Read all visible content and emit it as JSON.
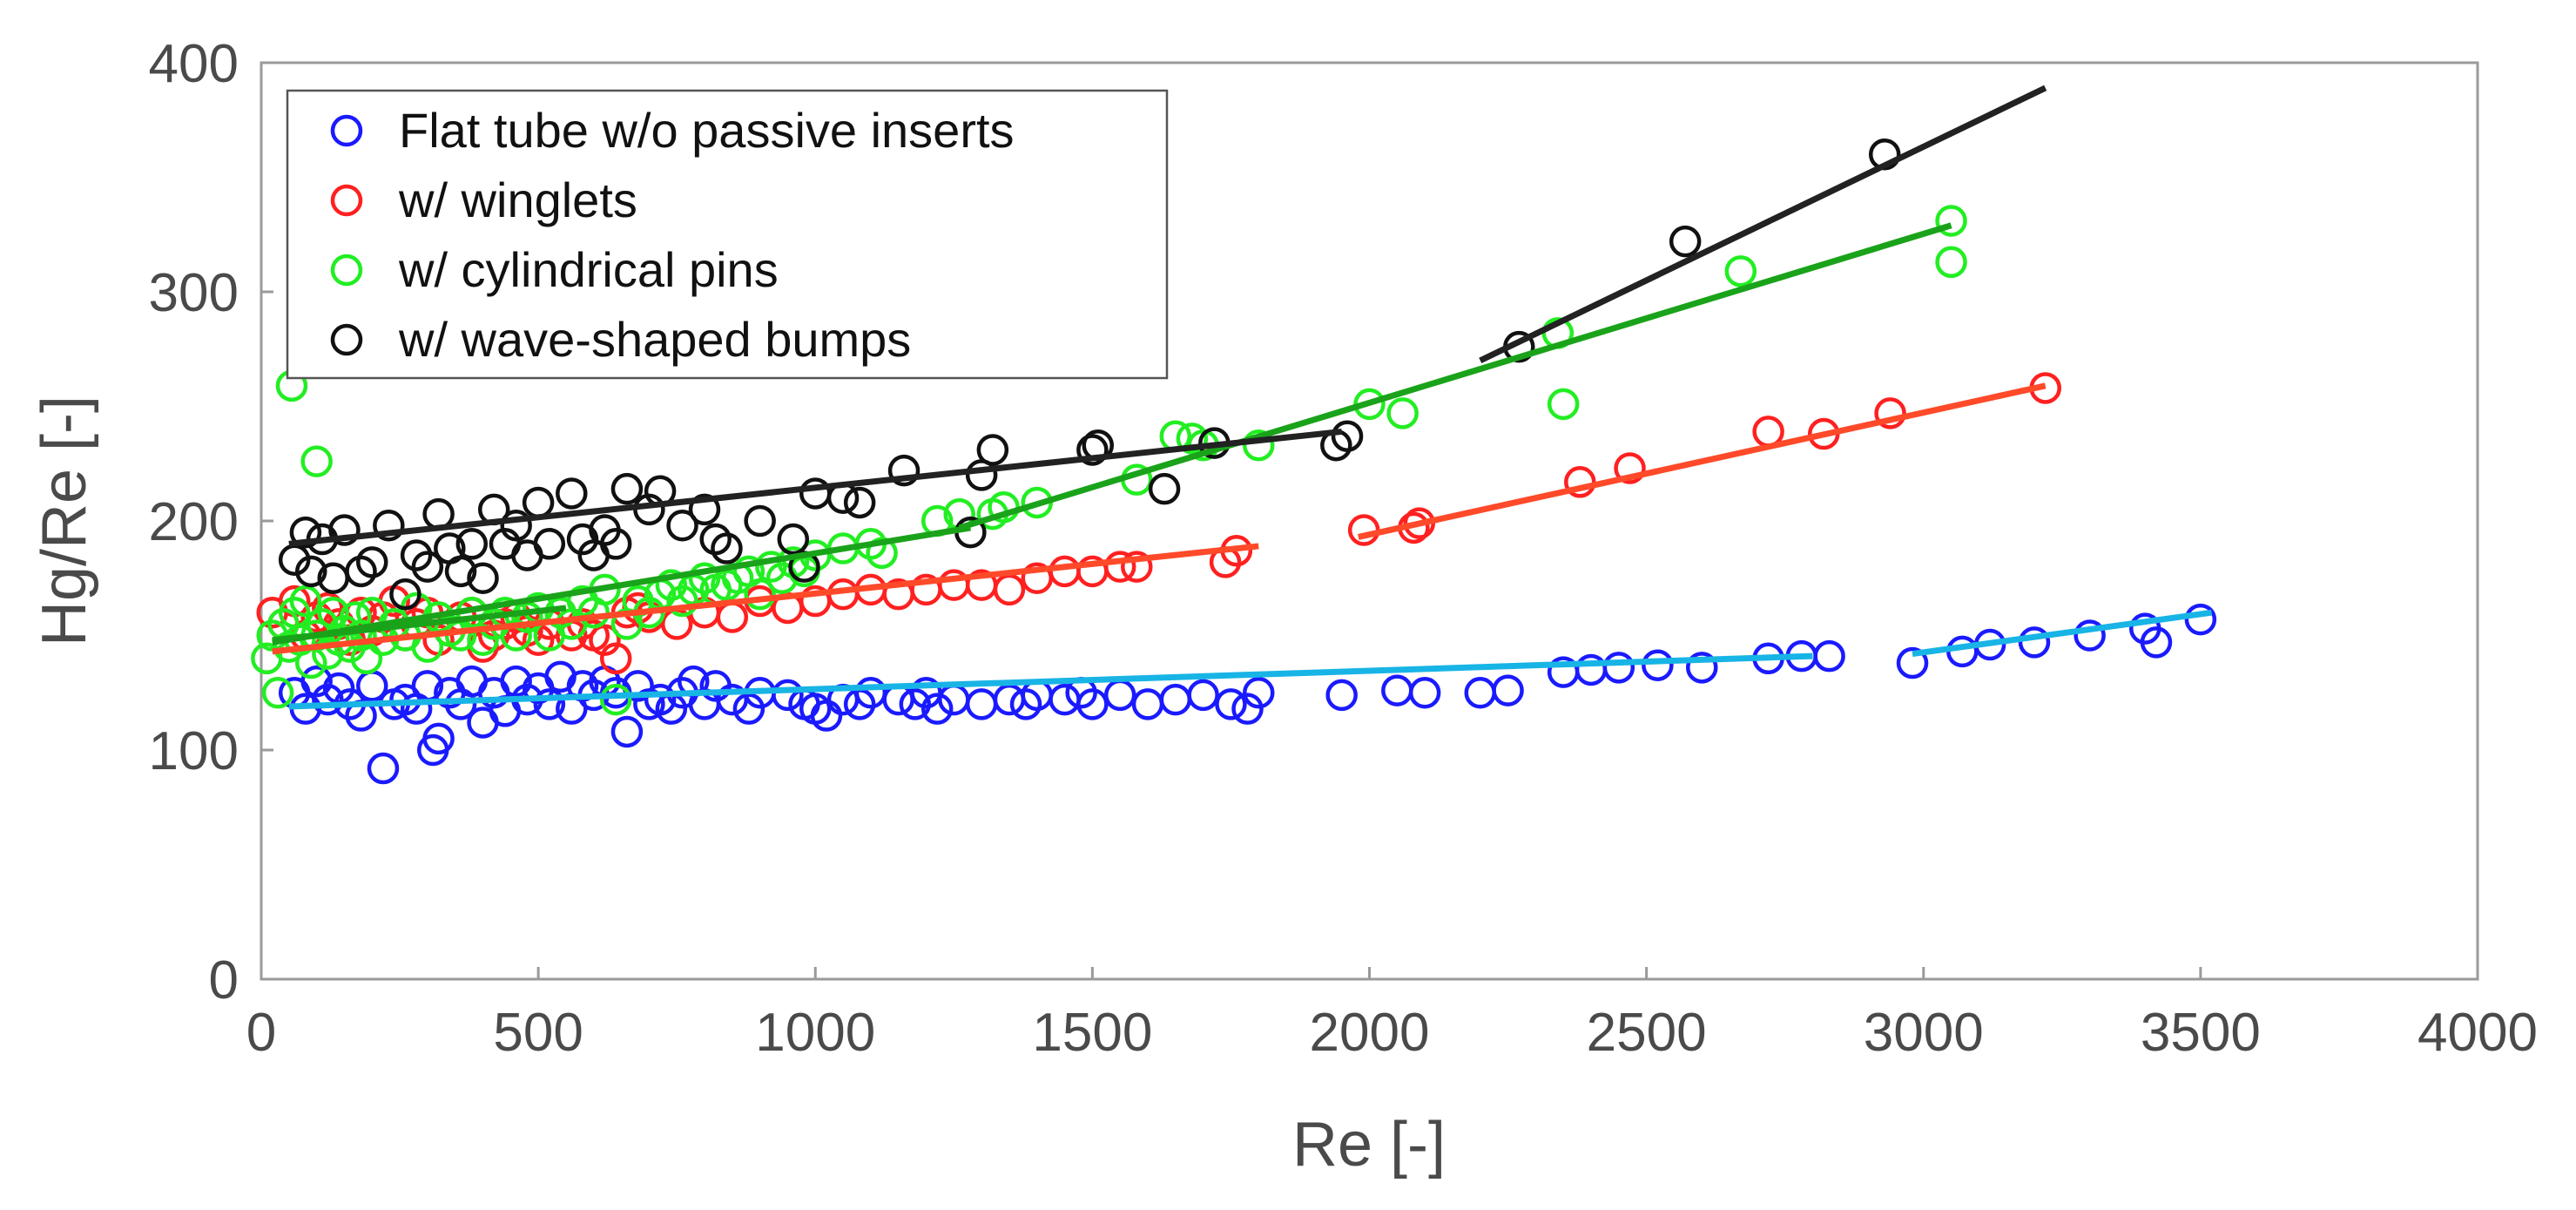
{
  "chart_data": {
    "type": "scatter",
    "title": "",
    "xlabel": "Re [-]",
    "ylabel": "Hg/Re [-]",
    "xlim": [
      0,
      4000
    ],
    "ylim": [
      0,
      400
    ],
    "xticks": [
      "0",
      "500",
      "1000",
      "1500",
      "2000",
      "2500",
      "3000",
      "3500",
      "4000"
    ],
    "yticks": [
      "0",
      "100",
      "200",
      "300",
      "400"
    ],
    "legend_position": "top-left",
    "series": [
      {
        "name": "Flat tube w/o passive inserts",
        "color": "#1a1aff",
        "marker": "circle-open",
        "x": [
          60,
          80,
          100,
          120,
          140,
          160,
          180,
          200,
          220,
          240,
          260,
          280,
          300,
          310,
          320,
          340,
          360,
          380,
          400,
          420,
          440,
          460,
          480,
          500,
          520,
          540,
          560,
          580,
          600,
          620,
          640,
          660,
          680,
          700,
          720,
          740,
          760,
          780,
          800,
          820,
          850,
          880,
          900,
          950,
          980,
          1000,
          1020,
          1050,
          1080,
          1100,
          1150,
          1180,
          1200,
          1220,
          1250,
          1300,
          1350,
          1380,
          1400,
          1450,
          1480,
          1500,
          1550,
          1600,
          1650,
          1700,
          1750,
          1780,
          1800,
          1950,
          2050,
          2100,
          2200,
          2250,
          2350,
          2400,
          2450,
          2520,
          2600,
          2720,
          2780,
          2830,
          2980,
          3070,
          3120,
          3200,
          3300,
          3400,
          3420,
          3500
        ],
        "y": [
          125,
          118,
          130,
          122,
          127,
          120,
          115,
          128,
          92,
          120,
          122,
          118,
          128,
          100,
          105,
          125,
          120,
          130,
          112,
          125,
          117,
          130,
          122,
          127,
          120,
          132,
          118,
          128,
          124,
          130,
          125,
          108,
          128,
          120,
          122,
          118,
          125,
          130,
          120,
          128,
          122,
          118,
          125,
          124,
          120,
          118,
          115,
          122,
          120,
          125,
          122,
          120,
          125,
          118,
          122,
          120,
          122,
          120,
          124,
          122,
          125,
          120,
          124,
          120,
          122,
          124,
          120,
          118,
          125,
          124,
          126,
          125,
          125,
          126,
          134,
          135,
          136,
          137,
          136,
          140,
          141,
          141,
          138,
          143,
          146,
          147,
          150,
          153,
          147,
          157
        ]
      },
      {
        "name": "w/ winglets",
        "color": "#ff2020",
        "marker": "circle-open",
        "x": [
          20,
          40,
          60,
          80,
          100,
          120,
          140,
          160,
          180,
          200,
          220,
          240,
          260,
          280,
          300,
          320,
          340,
          360,
          380,
          400,
          420,
          440,
          460,
          480,
          500,
          520,
          540,
          560,
          580,
          600,
          620,
          640,
          660,
          680,
          700,
          750,
          800,
          850,
          900,
          950,
          1000,
          1050,
          1100,
          1150,
          1200,
          1250,
          1300,
          1350,
          1400,
          1450,
          1500,
          1550,
          1580,
          1740,
          1760,
          1990,
          2080,
          2090,
          2380,
          2470,
          2720,
          2820,
          2940,
          3220
        ],
        "y": [
          160,
          155,
          165,
          150,
          158,
          162,
          155,
          148,
          160,
          152,
          158,
          165,
          150,
          155,
          160,
          148,
          152,
          158,
          160,
          145,
          150,
          155,
          158,
          152,
          148,
          155,
          160,
          150,
          155,
          150,
          148,
          140,
          160,
          162,
          158,
          155,
          160,
          158,
          165,
          162,
          165,
          168,
          170,
          168,
          170,
          172,
          172,
          170,
          175,
          178,
          178,
          180,
          180,
          182,
          187,
          196,
          197,
          199,
          217,
          223,
          239,
          238,
          247,
          258
        ]
      },
      {
        "name": "w/ cylindrical pins",
        "color": "#22ee22",
        "marker": "circle-open",
        "x": [
          10,
          20,
          30,
          40,
          50,
          60,
          70,
          80,
          90,
          100,
          110,
          120,
          130,
          140,
          150,
          160,
          170,
          180,
          190,
          200,
          220,
          240,
          260,
          280,
          300,
          320,
          340,
          360,
          380,
          400,
          420,
          440,
          460,
          480,
          500,
          520,
          540,
          560,
          580,
          600,
          620,
          640,
          660,
          680,
          700,
          720,
          740,
          760,
          780,
          800,
          820,
          840,
          860,
          880,
          900,
          920,
          940,
          960,
          980,
          1000,
          1050,
          1100,
          1120,
          1220,
          1260,
          1320,
          1340,
          1400,
          1580,
          1650,
          1680,
          1700,
          1800,
          2000,
          2060,
          2340,
          2350,
          2670,
          3050,
          3050,
          55,
          100
        ],
        "y": [
          140,
          150,
          125,
          155,
          145,
          160,
          148,
          165,
          138,
          150,
          155,
          142,
          160,
          148,
          152,
          145,
          158,
          150,
          140,
          160,
          148,
          155,
          150,
          162,
          145,
          158,
          152,
          150,
          160,
          148,
          155,
          160,
          150,
          158,
          162,
          150,
          160,
          155,
          165,
          160,
          170,
          122,
          155,
          165,
          160,
          168,
          172,
          165,
          170,
          175,
          170,
          172,
          175,
          178,
          168,
          180,
          175,
          182,
          178,
          185,
          188,
          190,
          186,
          200,
          203,
          203,
          206,
          208,
          218,
          237,
          236,
          233,
          233,
          251,
          247,
          282,
          251,
          309,
          331,
          313,
          259,
          226
        ]
      },
      {
        "name": "w/ wave-shaped bumps",
        "color": "#111111",
        "marker": "circle-open",
        "x": [
          60,
          80,
          90,
          110,
          130,
          150,
          180,
          200,
          230,
          260,
          280,
          300,
          320,
          340,
          360,
          380,
          400,
          420,
          440,
          460,
          480,
          500,
          520,
          560,
          580,
          600,
          620,
          640,
          660,
          700,
          720,
          760,
          800,
          820,
          840,
          900,
          960,
          980,
          1000,
          1050,
          1080,
          1160,
          1280,
          1300,
          1320,
          1500,
          1510,
          1630,
          1720,
          1940,
          1960,
          2270,
          2570,
          2930
        ],
        "y": [
          183,
          195,
          178,
          192,
          175,
          196,
          178,
          182,
          198,
          168,
          185,
          180,
          203,
          188,
          178,
          190,
          175,
          205,
          190,
          198,
          185,
          208,
          190,
          212,
          192,
          185,
          196,
          190,
          214,
          205,
          213,
          198,
          205,
          192,
          188,
          200,
          192,
          180,
          212,
          210,
          208,
          222,
          195,
          220,
          231,
          231,
          233,
          214,
          234,
          233,
          237,
          276,
          322,
          360
        ]
      }
    ],
    "fit_lines": [
      {
        "series": "Flat tube w/o passive inserts",
        "color": "#18b4e6",
        "x": [
          50,
          2800
        ],
        "y": [
          119,
          141
        ]
      },
      {
        "series": "Flat tube w/o passive inserts",
        "color": "#18b4e6",
        "x": [
          2980,
          3520
        ],
        "y": [
          142,
          160
        ]
      },
      {
        "series": "w/ winglets",
        "color": "#ff4a2a",
        "x": [
          20,
          1800
        ],
        "y": [
          143,
          189
        ]
      },
      {
        "series": "w/ winglets",
        "color": "#ff4a2a",
        "x": [
          1980,
          3220
        ],
        "y": [
          193,
          259
        ]
      },
      {
        "series": "w/ cylindrical pins",
        "color": "#1aa31a",
        "x": [
          20,
          1280
        ],
        "y": [
          147,
          197
        ]
      },
      {
        "series": "w/ cylindrical pins",
        "color": "#1aa31a",
        "x": [
          1260,
          3050
        ],
        "y": [
          197,
          329
        ]
      },
      {
        "series": "w/ cylindrical pins",
        "color": "#1aa31a",
        "x": [
          20,
          550
        ],
        "y": [
          148,
          162
        ]
      },
      {
        "series": "w/ wave-shaped bumps",
        "color": "#222222",
        "x": [
          50,
          1950
        ],
        "y": [
          190,
          239
        ]
      },
      {
        "series": "w/ wave-shaped bumps",
        "color": "#222222",
        "x": [
          2200,
          3220
        ],
        "y": [
          270,
          389
        ]
      }
    ]
  }
}
